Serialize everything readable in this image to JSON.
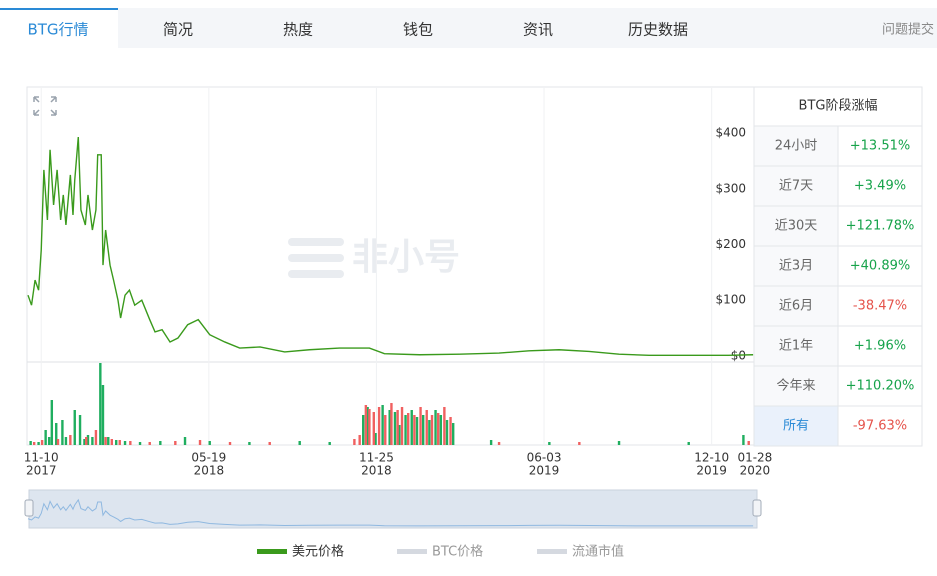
{
  "tabs": {
    "items": [
      "BTG行情",
      "简况",
      "热度",
      "钱包",
      "资讯",
      "历史数据"
    ],
    "active": 0,
    "feedback": "问题提交"
  },
  "chart_data": {
    "type": "line",
    "watermark": "非小号",
    "x": [
      -15,
      -11,
      -7,
      -3,
      0,
      3,
      7,
      10,
      14,
      18,
      22,
      25,
      28,
      33,
      36,
      38,
      42,
      45,
      50,
      53,
      58,
      62,
      64,
      68,
      70,
      73,
      78,
      82,
      87,
      90,
      95,
      100,
      106,
      114,
      123,
      129,
      137,
      146,
      155,
      166,
      178,
      191,
      208,
      225,
      248,
      276,
      304,
      338,
      372,
      389,
      429,
      474,
      519,
      553,
      587,
      621,
      655,
      689,
      734,
      779,
      807
    ],
    "series": [
      {
        "name": "美元价格",
        "color": "#3a9a1c",
        "values": [
          109,
          91,
          136,
          118,
          190,
          334,
          244,
          370,
          271,
          334,
          244,
          289,
          235,
          325,
          253,
          316,
          393,
          262,
          235,
          289,
          226,
          262,
          361,
          361,
          163,
          226,
          163,
          136,
          100,
          68,
          109,
          118,
          91,
          100,
          65,
          43,
          47,
          25,
          32,
          56,
          65,
          38,
          25,
          14,
          16,
          7,
          11,
          14,
          14,
          4,
          2,
          3,
          5,
          9,
          11,
          8,
          3,
          1,
          1,
          1,
          2
        ]
      }
    ],
    "legend_extra": [
      {
        "name": "BTC价格",
        "color": "#d5d9e0"
      },
      {
        "name": "流通市值",
        "color": "#d5d9e0"
      }
    ],
    "xlim": [
      -15,
      808
    ],
    "xticks": [
      {
        "value": 0,
        "label": "11-10"
      },
      {
        "value": 190,
        "label": "05-19"
      },
      {
        "value": 380,
        "label": "11-25"
      },
      {
        "value": 570,
        "label": "06-03"
      },
      {
        "value": 760,
        "label": "12-10"
      },
      {
        "value": 809,
        "label": "01-28"
      }
    ],
    "xtick_years": [
      "2017",
      "2018",
      "2018",
      "2019",
      "2019",
      "2020"
    ],
    "ylim": [
      -11,
      481
    ],
    "yticks": [
      {
        "value": 0,
        "label": "$0"
      },
      {
        "value": 100,
        "label": "$100"
      },
      {
        "value": 200,
        "label": "$200"
      },
      {
        "value": 300,
        "label": "$300"
      },
      {
        "value": 400,
        "label": "$400"
      }
    ],
    "volume": {
      "up": {
        "color": "#1fae5f",
        "x": [
          -12,
          -3,
          5,
          9,
          12,
          17,
          24,
          28,
          38,
          44,
          49,
          53,
          58,
          67,
          70,
          76,
          85,
          95,
          112,
          135,
          163,
          191,
          236,
          293,
          327,
          365,
          370,
          379,
          387,
          395,
          401,
          406,
          413,
          420,
          426,
          433,
          440,
          447,
          453,
          460,
          467,
          510,
          576,
          655,
          734,
          796
        ],
        "values": [
          4,
          3,
          15,
          8,
          45,
          22,
          25,
          8,
          35,
          30,
          6,
          10,
          8,
          82,
          60,
          8,
          5,
          4,
          3,
          4,
          8,
          4,
          3,
          4,
          3,
          30,
          38,
          12,
          40,
          35,
          33,
          20,
          30,
          35,
          28,
          30,
          25,
          35,
          30,
          25,
          22,
          5,
          3,
          4,
          3,
          10
        ]
      },
      "down": {
        "color": "#f06060",
        "x": [
          -8,
          1,
          19,
          33,
          51,
          62,
          73,
          80,
          89,
          101,
          123,
          152,
          180,
          214,
          259,
          355,
          361,
          368,
          372,
          377,
          383,
          390,
          397,
          404,
          409,
          416,
          423,
          430,
          437,
          443,
          450,
          457,
          464,
          519,
          610,
          802
        ],
        "values": [
          3,
          5,
          6,
          10,
          8,
          15,
          8,
          6,
          5,
          4,
          3,
          4,
          5,
          3,
          3,
          6,
          10,
          40,
          36,
          33,
          38,
          30,
          42,
          35,
          38,
          32,
          30,
          38,
          35,
          30,
          32,
          38,
          28,
          3,
          3,
          4
        ]
      }
    }
  },
  "performance": {
    "title": "BTG阶段涨幅",
    "up_color": "#16a34a",
    "down_color": "#e5534b",
    "rows": [
      [
        "24小时",
        "+13.51%"
      ],
      [
        "近7天",
        "+3.49%"
      ],
      [
        "近30天",
        "+121.78%"
      ],
      [
        "近3月",
        "+40.89%"
      ],
      [
        "近6月",
        "-38.47%"
      ],
      [
        "近1年",
        "+1.96%"
      ],
      [
        "今年来",
        "+110.20%"
      ],
      [
        "所有",
        "-97.63%"
      ]
    ]
  }
}
